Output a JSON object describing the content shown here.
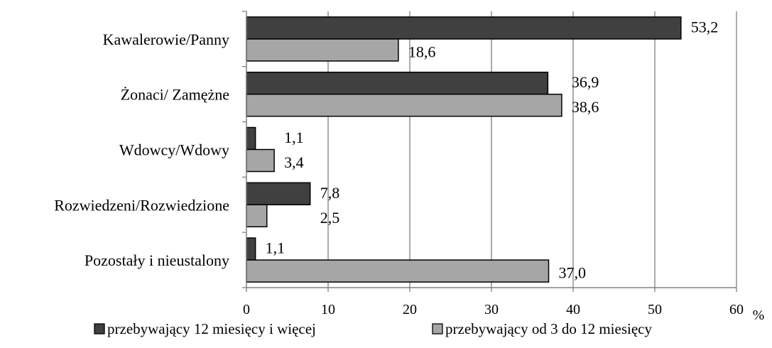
{
  "chart_data": {
    "type": "bar",
    "orientation": "horizontal",
    "categories": [
      "Kawalerowie/Panny",
      "Żonaci/ Zamężne",
      "Wdowcy/Wdowy",
      "Rozwiedzeni/Rozwiedzione",
      "Pozostały i nieustalony"
    ],
    "series": [
      {
        "name": "przebywający 12 miesięcy i więcej",
        "color": "#404040",
        "values": [
          53.2,
          36.9,
          1.1,
          7.8,
          1.1
        ],
        "labels": [
          "53,2",
          "36,9",
          "1,1",
          "7,8",
          "1,1"
        ]
      },
      {
        "name": "przebywający od 3 do 12 miesięcy",
        "color": "#a6a6a6",
        "values": [
          18.6,
          38.6,
          3.4,
          2.5,
          37.0
        ],
        "labels": [
          "18,6",
          "38,6",
          "3,4",
          "2,5",
          "37,0"
        ]
      }
    ],
    "xlim": [
      0,
      60
    ],
    "xticks": [
      0,
      10,
      20,
      30,
      40,
      50,
      60
    ],
    "xtick_labels": [
      "0",
      "10",
      "20",
      "30",
      "40",
      "50",
      "60"
    ],
    "xunit": "%",
    "grid": true,
    "legend_position": "bottom"
  }
}
